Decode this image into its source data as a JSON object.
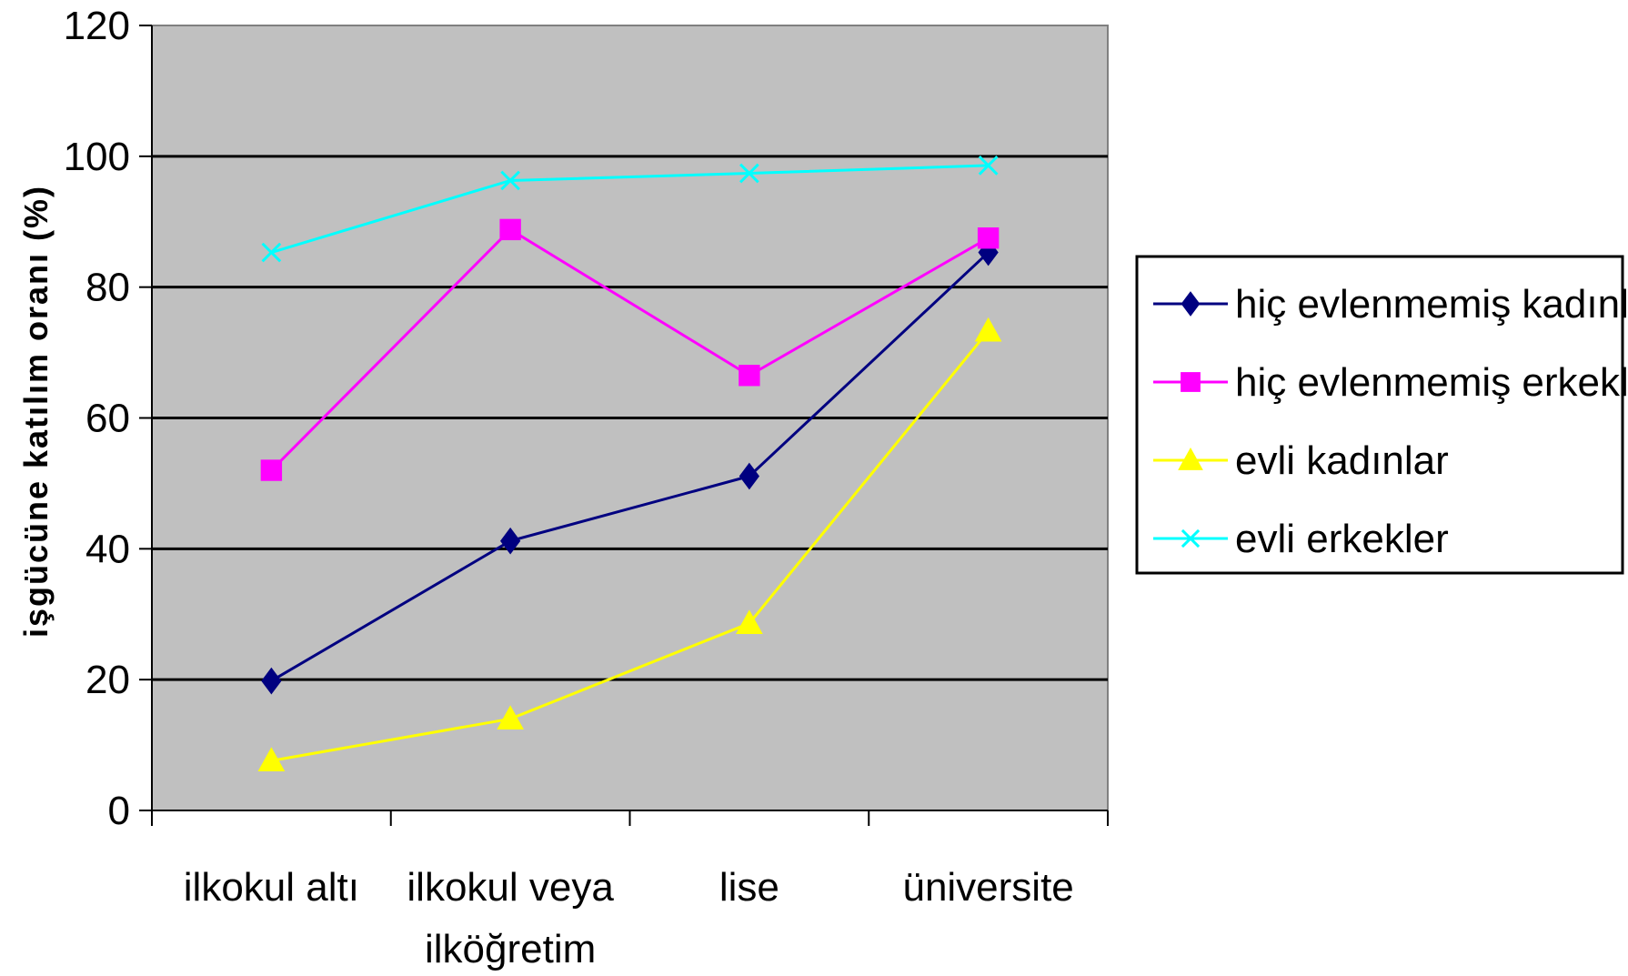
{
  "chart_data": {
    "type": "line",
    "title": "",
    "xlabel": "",
    "ylabel": "işgücüne katılım oranı (%)",
    "ylim": [
      0,
      120
    ],
    "yticks": [
      "0",
      "20",
      "40",
      "60",
      "80",
      "100",
      "120"
    ],
    "categories": [
      [
        "ilkokul altı"
      ],
      [
        "ilkokul veya",
        "ilköğretim"
      ],
      [
        "lise"
      ],
      [
        "üniversite"
      ]
    ],
    "grid": true,
    "plot_background": "#c0c0c0",
    "legend_position": "right",
    "series": [
      {
        "name": "hiç evlenmemiş kadınlar",
        "color": "#000080",
        "marker": "diamond",
        "values": [
          19.8,
          41.2,
          51.1,
          85.3
        ]
      },
      {
        "name": "hiç evlenmemiş erkekler",
        "color": "#ff00ff",
        "marker": "square",
        "values": [
          52.0,
          88.8,
          66.5,
          87.5
        ]
      },
      {
        "name": "evli kadınlar",
        "color": "#ffff00",
        "marker": "triangle",
        "values": [
          7.6,
          14.0,
          28.6,
          73.3
        ]
      },
      {
        "name": "evli erkekler",
        "color": "#00ffff",
        "marker": "x",
        "values": [
          85.3,
          96.3,
          97.4,
          98.6
        ]
      }
    ]
  }
}
